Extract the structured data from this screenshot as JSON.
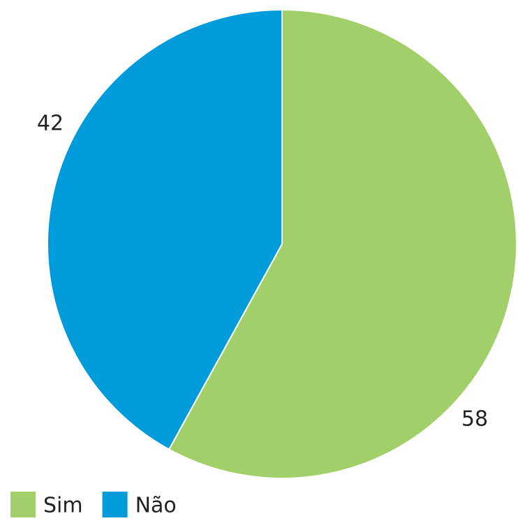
{
  "chart_data": {
    "type": "pie",
    "categories": [
      "Sim",
      "Não"
    ],
    "values": [
      58,
      42
    ],
    "colors": [
      "#a3cf6a",
      "#009bdb"
    ],
    "start_angle": 0,
    "direction": "clockwise",
    "legend": "bottom-left"
  }
}
